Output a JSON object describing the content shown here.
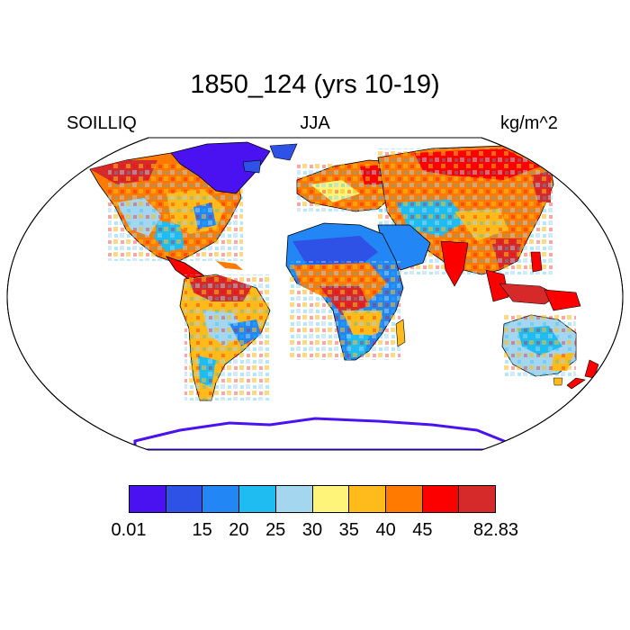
{
  "title": "1850_124 (yrs 10-19)",
  "left_label": "SOILLIQ",
  "center_label": "JJA",
  "right_label": "kg/m^2",
  "colorbar": {
    "colors": [
      "#4a12f0",
      "#2e51e6",
      "#2287f5",
      "#1fbcf2",
      "#a5d6f0",
      "#fff47a",
      "#ffbb1c",
      "#ff7a00",
      "#fc0000",
      "#d62929"
    ],
    "tick_labels": [
      "0.01",
      "15",
      "20",
      "25",
      "30",
      "35",
      "40",
      "45",
      "82.83"
    ]
  },
  "map": {
    "projection": "robinson",
    "variable": "SOILLIQ",
    "units": "kg/m^2",
    "season": "JJA"
  }
}
